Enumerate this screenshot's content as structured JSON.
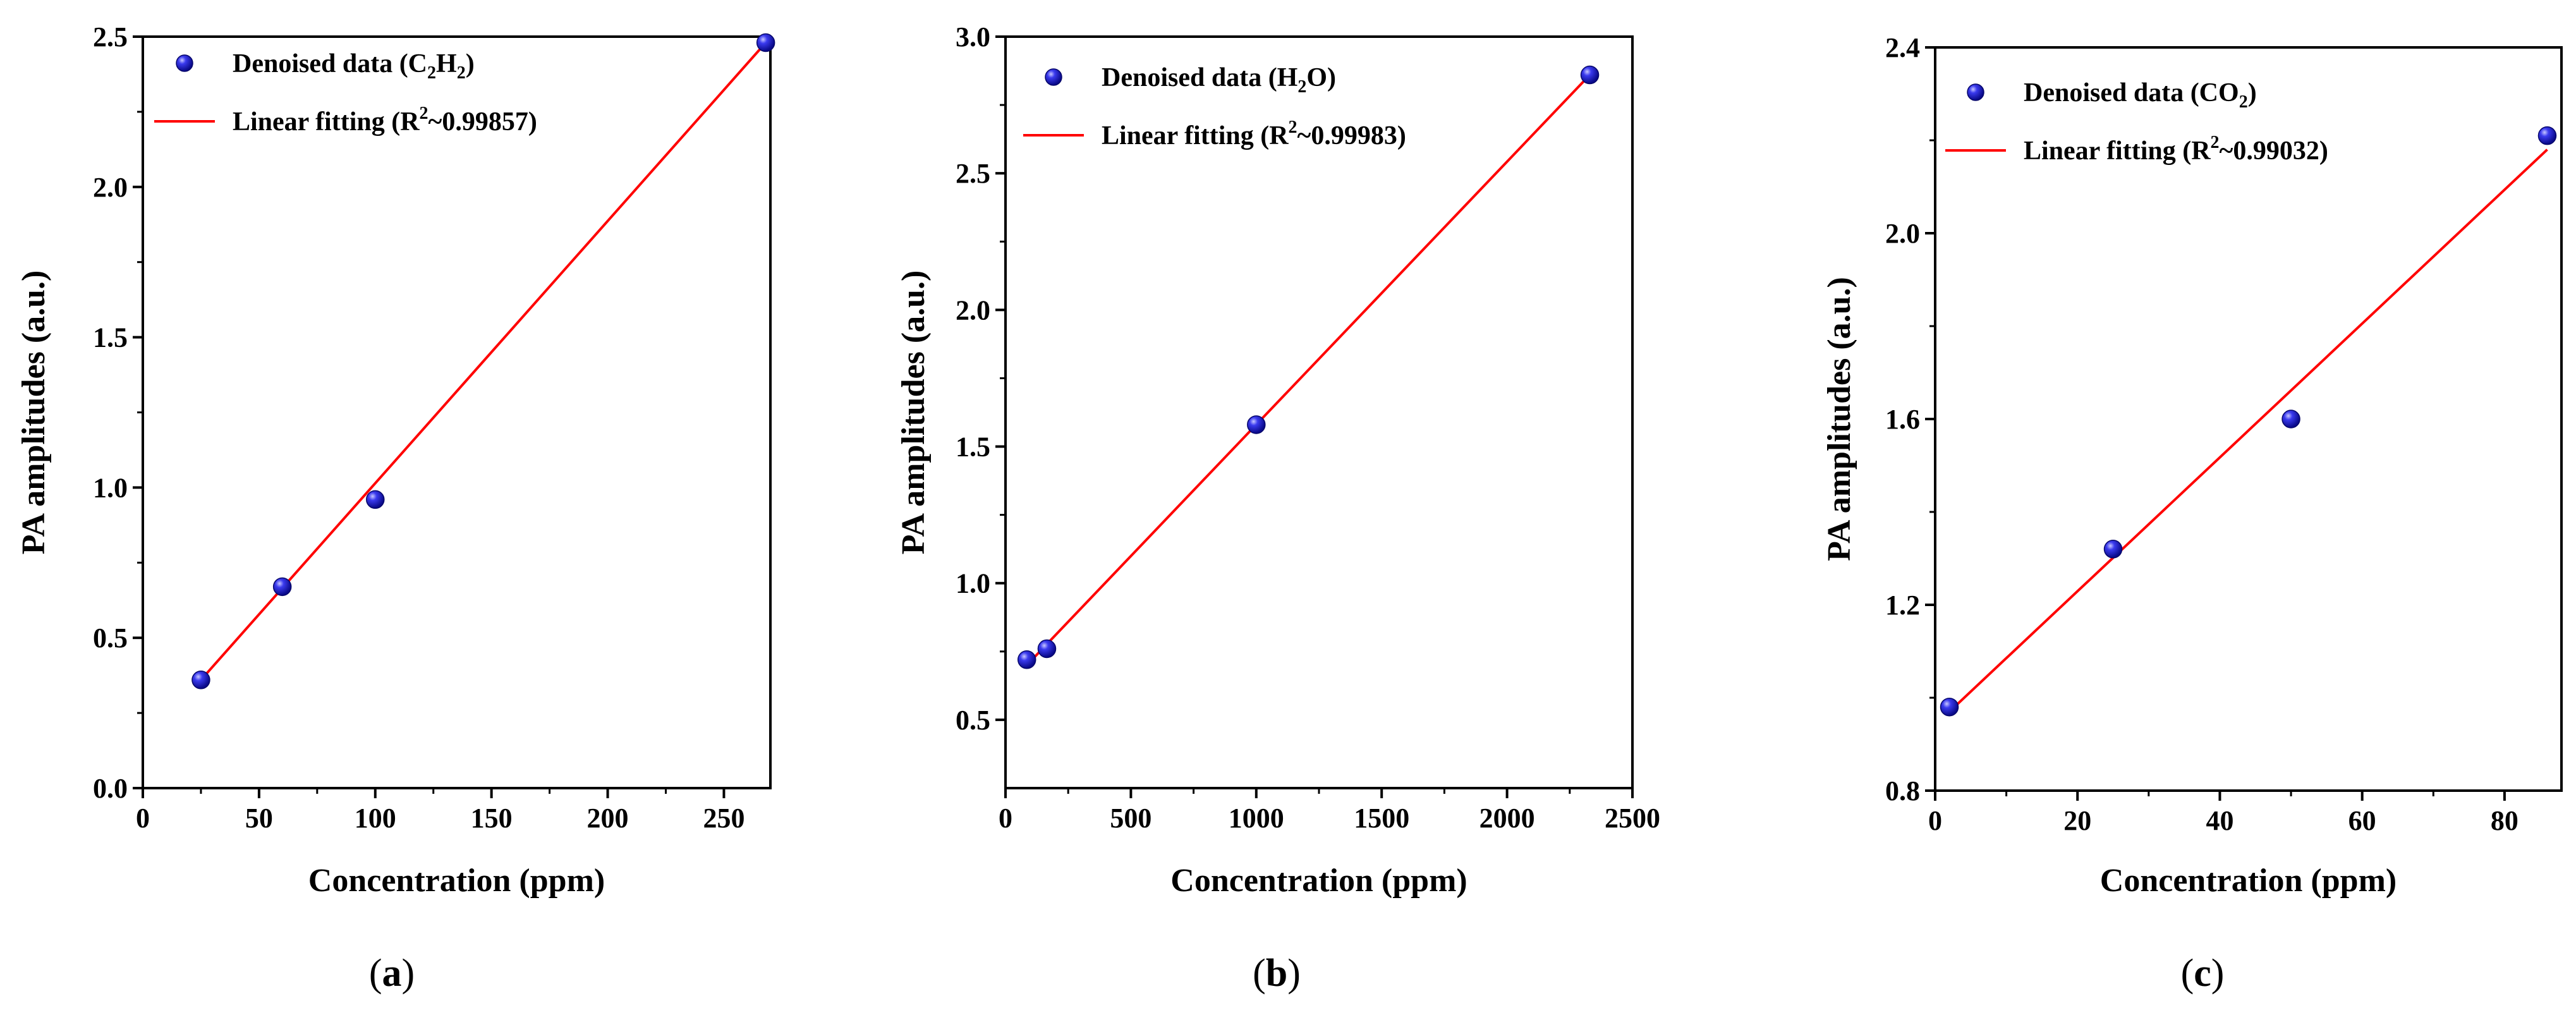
{
  "chart_data": [
    {
      "type": "scatter",
      "panel_label": "(a)",
      "xlabel": "Concentration (ppm)",
      "ylabel": "PA amplitudes (a.u.)",
      "xlim": [
        0,
        270
      ],
      "ylim": [
        0.0,
        2.5
      ],
      "xticks": [
        0,
        50,
        100,
        150,
        200,
        250
      ],
      "yticks": [
        0.0,
        0.5,
        1.0,
        1.5,
        2.0,
        2.5
      ],
      "xtick_labels": [
        "0",
        "50",
        "100",
        "150",
        "200",
        "250"
      ],
      "ytick_labels": [
        "0.0",
        "0.5",
        "1.0",
        "1.5",
        "2.0",
        "2.5"
      ],
      "series": [
        {
          "name": "Denoised data (C2H2)",
          "legend_pre": "Denoised data (C",
          "legend_sub1": "2",
          "legend_mid": "H",
          "legend_sub2": "2",
          "legend_post": ")",
          "kind": "scatter",
          "color": "#1a1acc",
          "x": [
            25,
            60,
            100,
            268
          ],
          "y": [
            0.36,
            0.67,
            0.96,
            2.48
          ]
        },
        {
          "name": "Linear fitting (R2~0.99857)",
          "legend_pre": "Linear fitting (R",
          "legend_sup": "2",
          "legend_post": "~0.99857)",
          "kind": "line",
          "color": "#ff0000",
          "x": [
            25,
            268
          ],
          "y": [
            0.36,
            2.48
          ]
        }
      ]
    },
    {
      "type": "scatter",
      "panel_label": "(b)",
      "xlabel": "Concentration (ppm)",
      "ylabel": "PA amplitudes (a.u.)",
      "xlim": [
        0,
        2500
      ],
      "ylim": [
        0.25,
        3.0
      ],
      "xticks": [
        0,
        500,
        1000,
        1500,
        2000,
        2500
      ],
      "yticks": [
        0.5,
        1.0,
        1.5,
        2.0,
        2.5,
        3.0
      ],
      "xtick_labels": [
        "0",
        "500",
        "1000",
        "1500",
        "2000",
        "2500"
      ],
      "ytick_labels": [
        "0.5",
        "1.0",
        "1.5",
        "2.0",
        "2.5",
        "3.0"
      ],
      "series": [
        {
          "name": "Denoised data (H2O)",
          "legend_pre": "Denoised data (H",
          "legend_sub1": "2",
          "legend_mid": "O)",
          "legend_sub2": "",
          "legend_post": "",
          "kind": "scatter",
          "color": "#1a1acc",
          "x": [
            85,
            165,
            1000,
            2330
          ],
          "y": [
            0.72,
            0.76,
            1.58,
            2.86
          ]
        },
        {
          "name": "Linear fitting (R2~0.99983)",
          "legend_pre": "Linear fitting (R",
          "legend_sup": "2",
          "legend_post": "~0.99983)",
          "kind": "line",
          "color": "#ff0000",
          "x": [
            85,
            2330
          ],
          "y": [
            0.7,
            2.86
          ]
        }
      ]
    },
    {
      "type": "scatter",
      "panel_label": "(c)",
      "xlabel": "Concentration (ppm)",
      "ylabel": "PA amplitudes (a.u.)",
      "xlim": [
        0,
        88
      ],
      "ylim": [
        0.8,
        2.4
      ],
      "xticks": [
        0,
        20,
        40,
        60,
        80
      ],
      "yticks": [
        0.8,
        1.2,
        1.6,
        2.0,
        2.4
      ],
      "xtick_labels": [
        "0",
        "20",
        "40",
        "60",
        "80"
      ],
      "ytick_labels": [
        "0.8",
        "1.2",
        "1.6",
        "2.0",
        "2.4"
      ],
      "series": [
        {
          "name": "Denoised data (CO2)",
          "legend_pre": "Denoised data (CO",
          "legend_sub1": "2",
          "legend_mid": ")",
          "legend_sub2": "",
          "legend_post": "",
          "kind": "scatter",
          "color": "#1a1acc",
          "x": [
            2,
            25,
            50,
            86
          ],
          "y": [
            0.98,
            1.32,
            1.6,
            2.21
          ]
        },
        {
          "name": "Linear fitting (R2~0.99032)",
          "legend_pre": "Linear fitting (R",
          "legend_sup": "2",
          "legend_post": "~0.99032)",
          "kind": "line",
          "color": "#ff0000",
          "x": [
            2,
            86
          ],
          "y": [
            0.97,
            2.18
          ]
        }
      ]
    }
  ]
}
